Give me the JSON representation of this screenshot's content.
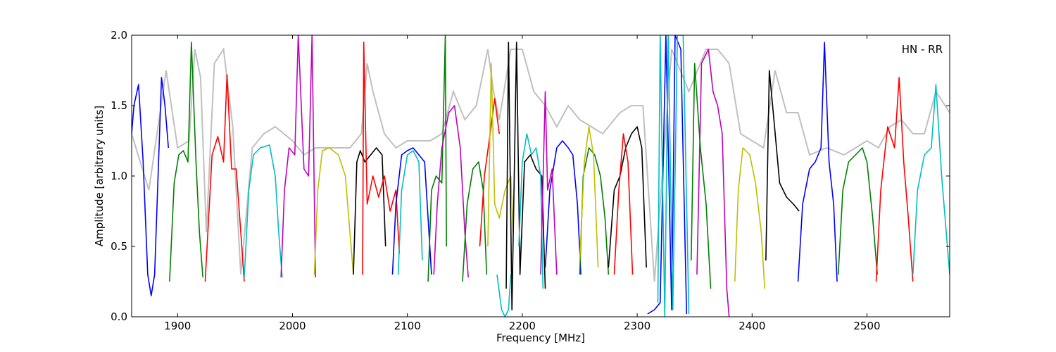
{
  "chart_data": {
    "type": "line",
    "title": "",
    "xlabel": "Frequency [MHz]",
    "ylabel": "Amplitude [arbitrary units]",
    "xlim": [
      1860,
      2572
    ],
    "ylim": [
      0.0,
      2.0
    ],
    "xticks": [
      1900,
      2000,
      2100,
      2200,
      2300,
      2400,
      2500
    ],
    "xtick_labels": [
      "1900",
      "2000",
      "2100",
      "2200",
      "2300",
      "2400",
      "2500"
    ],
    "yticks": [
      0.0,
      0.5,
      1.0,
      1.5,
      2.0
    ],
    "ytick_labels": [
      "0.0",
      "0.5",
      "1.0",
      "1.5",
      "2.0"
    ],
    "annotation": "HN - RR",
    "annotation_position": "top-right",
    "grid": false,
    "legend": "none",
    "background": {
      "color": "#c0c0c0",
      "description": "gray envelope",
      "x": [
        1860,
        1875,
        1890,
        1900,
        1910,
        1915,
        1920,
        1925,
        1932,
        1940,
        1948,
        1955,
        1965,
        1975,
        1985,
        2000,
        2010,
        2020,
        2035,
        2050,
        2060,
        2065,
        2070,
        2080,
        2090,
        2100,
        2110,
        2120,
        2130,
        2140,
        2145,
        2150,
        2160,
        2170,
        2175,
        2180,
        2190,
        2200,
        2210,
        2220,
        2230,
        2240,
        2250,
        2260,
        2270,
        2285,
        2295,
        2305,
        2315,
        2330,
        2345,
        2360,
        2370,
        2380,
        2390,
        2400,
        2410,
        2420,
        2430,
        2440,
        2450,
        2465,
        2480,
        2490,
        2500,
        2510,
        2520,
        2530,
        2540,
        2550,
        2560,
        2572
      ],
      "y": [
        1.3,
        0.9,
        1.75,
        1.2,
        1.25,
        1.9,
        1.7,
        0.6,
        1.8,
        1.9,
        1.35,
        0.3,
        1.2,
        1.3,
        1.35,
        1.25,
        1.15,
        1.2,
        1.2,
        1.2,
        1.3,
        1.8,
        1.6,
        1.3,
        1.2,
        1.25,
        1.25,
        1.25,
        1.3,
        1.6,
        1.5,
        1.4,
        1.5,
        1.9,
        1.6,
        1.4,
        1.9,
        1.9,
        1.6,
        1.5,
        1.35,
        1.5,
        1.4,
        1.35,
        1.3,
        1.45,
        1.5,
        1.5,
        0.25,
        1.9,
        1.6,
        1.9,
        1.9,
        1.8,
        1.3,
        1.25,
        1.2,
        1.75,
        1.45,
        1.45,
        1.15,
        1.2,
        1.15,
        1.2,
        1.25,
        1.2,
        1.35,
        1.4,
        1.3,
        1.3,
        1.6,
        1.45
      ]
    },
    "series": [
      {
        "color": "#0000ff",
        "x": [
          1860,
          1862,
          1866,
          1870,
          1874,
          1877,
          1880,
          1883,
          1886,
          1889,
          1892
        ],
        "y": [
          1.3,
          1.5,
          1.65,
          1.1,
          0.3,
          0.15,
          0.3,
          1.0,
          1.7,
          1.5,
          1.2
        ]
      },
      {
        "color": "#008000",
        "x": [
          1893,
          1897,
          1901,
          1905,
          1909,
          1912,
          1916,
          1919,
          1922
        ],
        "y": [
          0.25,
          0.95,
          1.15,
          1.18,
          1.1,
          1.95,
          1.1,
          0.6,
          0.28
        ]
      },
      {
        "color": "#ff0000",
        "x": [
          1924,
          1927,
          1930,
          1935,
          1940,
          1943,
          1947,
          1951,
          1955,
          1958
        ],
        "y": [
          0.25,
          0.7,
          1.15,
          1.28,
          1.1,
          1.72,
          1.05,
          1.05,
          0.6,
          0.25
        ]
      },
      {
        "color": "#00bfbf",
        "x": [
          1958,
          1962,
          1966,
          1972,
          1980,
          1985,
          1988,
          1991
        ],
        "y": [
          0.28,
          0.9,
          1.15,
          1.2,
          1.22,
          1.0,
          0.6,
          0.28
        ]
      },
      {
        "color": "#bf00bf",
        "x": [
          1990,
          1993,
          1997,
          2002,
          2005,
          2010,
          2014,
          2017,
          2020
        ],
        "y": [
          0.28,
          0.9,
          1.2,
          1.15,
          2.0,
          1.05,
          1.0,
          2.0,
          0.28
        ]
      },
      {
        "color": "#bfbf00",
        "x": [
          2019,
          2022,
          2026,
          2032,
          2040,
          2046,
          2050,
          2053
        ],
        "y": [
          0.3,
          0.9,
          1.18,
          1.2,
          1.15,
          1.0,
          0.6,
          0.3
        ]
      },
      {
        "color": "#000000",
        "x": [
          2053,
          2056,
          2059,
          2063,
          2068,
          2073,
          2078,
          2081
        ],
        "y": [
          0.3,
          1.1,
          1.18,
          1.1,
          1.15,
          1.2,
          1.15,
          0.5
        ]
      },
      {
        "color": "#ff0000",
        "x": [
          2061,
          2062,
          2065,
          2070,
          2075,
          2080,
          2085,
          2090,
          2093
        ],
        "y": [
          0.3,
          1.95,
          0.8,
          1.0,
          0.85,
          1.0,
          0.75,
          0.9,
          0.45
        ]
      },
      {
        "color": "#0000ff",
        "x": [
          2087,
          2090,
          2095,
          2100,
          2105,
          2110,
          2115,
          2118,
          2121
        ],
        "y": [
          0.3,
          0.8,
          1.15,
          1.18,
          1.2,
          1.15,
          1.1,
          0.7,
          0.3
        ]
      },
      {
        "color": "#00bfbf",
        "x": [
          2092,
          2095,
          2100,
          2105,
          2110,
          2113
        ],
        "y": [
          0.3,
          0.9,
          1.15,
          1.18,
          1.1,
          0.4
        ]
      },
      {
        "color": "#008000",
        "x": [
          2118,
          2121,
          2125,
          2130,
          2133,
          2134
        ],
        "y": [
          0.25,
          0.9,
          1.0,
          0.95,
          2.0,
          0.5
        ]
      },
      {
        "color": "#bf00bf",
        "x": [
          2123,
          2126,
          2130,
          2136,
          2141,
          2146,
          2150,
          2153
        ],
        "y": [
          0.3,
          0.8,
          1.2,
          1.45,
          1.5,
          1.2,
          0.6,
          0.28
        ]
      },
      {
        "color": "#008000",
        "x": [
          2148,
          2152,
          2157,
          2162,
          2166,
          2169
        ],
        "y": [
          0.25,
          0.8,
          1.05,
          1.1,
          0.9,
          0.3
        ]
      },
      {
        "color": "#ff0000",
        "x": [
          2163,
          2167,
          2172,
          2176,
          2180
        ],
        "y": [
          0.5,
          1.0,
          1.3,
          1.55,
          1.3
        ]
      },
      {
        "color": "#bfbf00",
        "x": [
          2170,
          2173,
          2176,
          2180,
          2185,
          2190,
          2192
        ],
        "y": [
          0.5,
          1.8,
          0.8,
          0.7,
          0.9,
          1.0,
          0.6
        ]
      },
      {
        "color": "#00bfbf",
        "x": [
          2178,
          2182,
          2185,
          2188,
          2190
        ],
        "y": [
          0.3,
          0.05,
          0.0,
          0.05,
          0.3
        ]
      },
      {
        "color": "#000000",
        "x": [
          2186,
          2188,
          2191,
          2195,
          2198,
          2202,
          2207,
          2212,
          2217,
          2220
        ],
        "y": [
          0.2,
          1.95,
          0.05,
          1.95,
          0.3,
          1.1,
          1.15,
          1.05,
          1.0,
          0.2
        ]
      },
      {
        "color": "#00bfbf",
        "x": [
          2197,
          2200,
          2204,
          2208,
          2212,
          2216,
          2218
        ],
        "y": [
          0.5,
          1.1,
          1.3,
          1.15,
          1.2,
          1.0,
          0.2
        ]
      },
      {
        "color": "#0000ff",
        "x": [
          2220,
          2224,
          2230,
          2235,
          2240,
          2244,
          2248,
          2251
        ],
        "y": [
          0.35,
          0.9,
          1.2,
          1.25,
          1.2,
          1.15,
          0.8,
          0.3
        ]
      },
      {
        "color": "#bf00bf",
        "x": [
          2216,
          2220,
          2222,
          2226,
          2230
        ],
        "y": [
          0.3,
          1.6,
          0.9,
          1.05,
          0.3
        ]
      },
      {
        "color": "#008000",
        "x": [
          2250,
          2253,
          2258,
          2263,
          2268,
          2272,
          2275
        ],
        "y": [
          0.3,
          1.0,
          1.2,
          1.15,
          1.0,
          0.7,
          0.3
        ]
      },
      {
        "color": "#bfbf00",
        "x": [
          2250,
          2254,
          2258,
          2262,
          2266
        ],
        "y": [
          0.4,
          1.1,
          1.35,
          1.15,
          0.35
        ]
      },
      {
        "color": "#000000",
        "x": [
          2275,
          2280,
          2285,
          2290,
          2295,
          2300,
          2304,
          2308
        ],
        "y": [
          0.35,
          0.9,
          1.0,
          1.2,
          1.3,
          1.35,
          1.2,
          0.35
        ]
      },
      {
        "color": "#ff0000",
        "x": [
          2280,
          2284,
          2288,
          2292,
          2296
        ],
        "y": [
          0.3,
          0.9,
          1.3,
          1.1,
          0.3
        ]
      },
      {
        "color": "#0000ff",
        "x": [
          2309,
          2315,
          2320,
          2325,
          2330,
          2333,
          2338,
          2343
        ],
        "y": [
          0.02,
          0.05,
          0.1,
          2.0,
          0.05,
          2.0,
          1.9,
          0.02
        ]
      },
      {
        "color": "#00bfbf",
        "x": [
          2318,
          2320,
          2324,
          2327,
          2331,
          2335,
          2340,
          2345
        ],
        "y": [
          0.1,
          2.0,
          0.0,
          2.0,
          0.05,
          2.0,
          2.0,
          0.02
        ]
      },
      {
        "color": "#bf00bf",
        "x": [
          2352,
          2356,
          2362,
          2366,
          2370,
          2374,
          2378,
          2380
        ],
        "y": [
          0.3,
          1.8,
          1.9,
          1.6,
          1.5,
          1.3,
          0.2,
          0.0
        ]
      },
      {
        "color": "#008000",
        "x": [
          2347,
          2350,
          2355,
          2360,
          2364
        ],
        "y": [
          0.4,
          1.8,
          1.2,
          0.8,
          0.2
        ]
      },
      {
        "color": "#bfbf00",
        "x": [
          2385,
          2388,
          2392,
          2398,
          2403,
          2408,
          2411
        ],
        "y": [
          0.25,
          0.9,
          1.2,
          1.15,
          0.95,
          0.6,
          0.2
        ]
      },
      {
        "color": "#000000",
        "x": [
          2412,
          2415,
          2419,
          2424,
          2430,
          2436,
          2441
        ],
        "y": [
          0.4,
          1.75,
          1.4,
          0.95,
          0.85,
          0.8,
          0.75
        ]
      },
      {
        "color": "#0000ff",
        "x": [
          2440,
          2444,
          2450,
          2455,
          2460,
          2463,
          2467,
          2471,
          2474
        ],
        "y": [
          0.25,
          0.8,
          1.05,
          1.1,
          1.2,
          1.95,
          1.1,
          0.8,
          0.25
        ]
      },
      {
        "color": "#008000",
        "x": [
          2475,
          2479,
          2484,
          2490,
          2496,
          2500,
          2505,
          2509
        ],
        "y": [
          0.3,
          0.9,
          1.1,
          1.15,
          1.2,
          1.1,
          0.7,
          0.3
        ]
      },
      {
        "color": "#ff0000",
        "x": [
          2508,
          2512,
          2518,
          2524,
          2528,
          2532,
          2536,
          2540
        ],
        "y": [
          0.25,
          0.9,
          1.35,
          1.2,
          1.7,
          1.1,
          0.7,
          0.25
        ]
      },
      {
        "color": "#00bfbf",
        "x": [
          2540,
          2544,
          2550,
          2556,
          2560,
          2565,
          2572
        ],
        "y": [
          0.3,
          0.9,
          1.15,
          1.2,
          1.65,
          1.0,
          0.3
        ]
      }
    ]
  }
}
